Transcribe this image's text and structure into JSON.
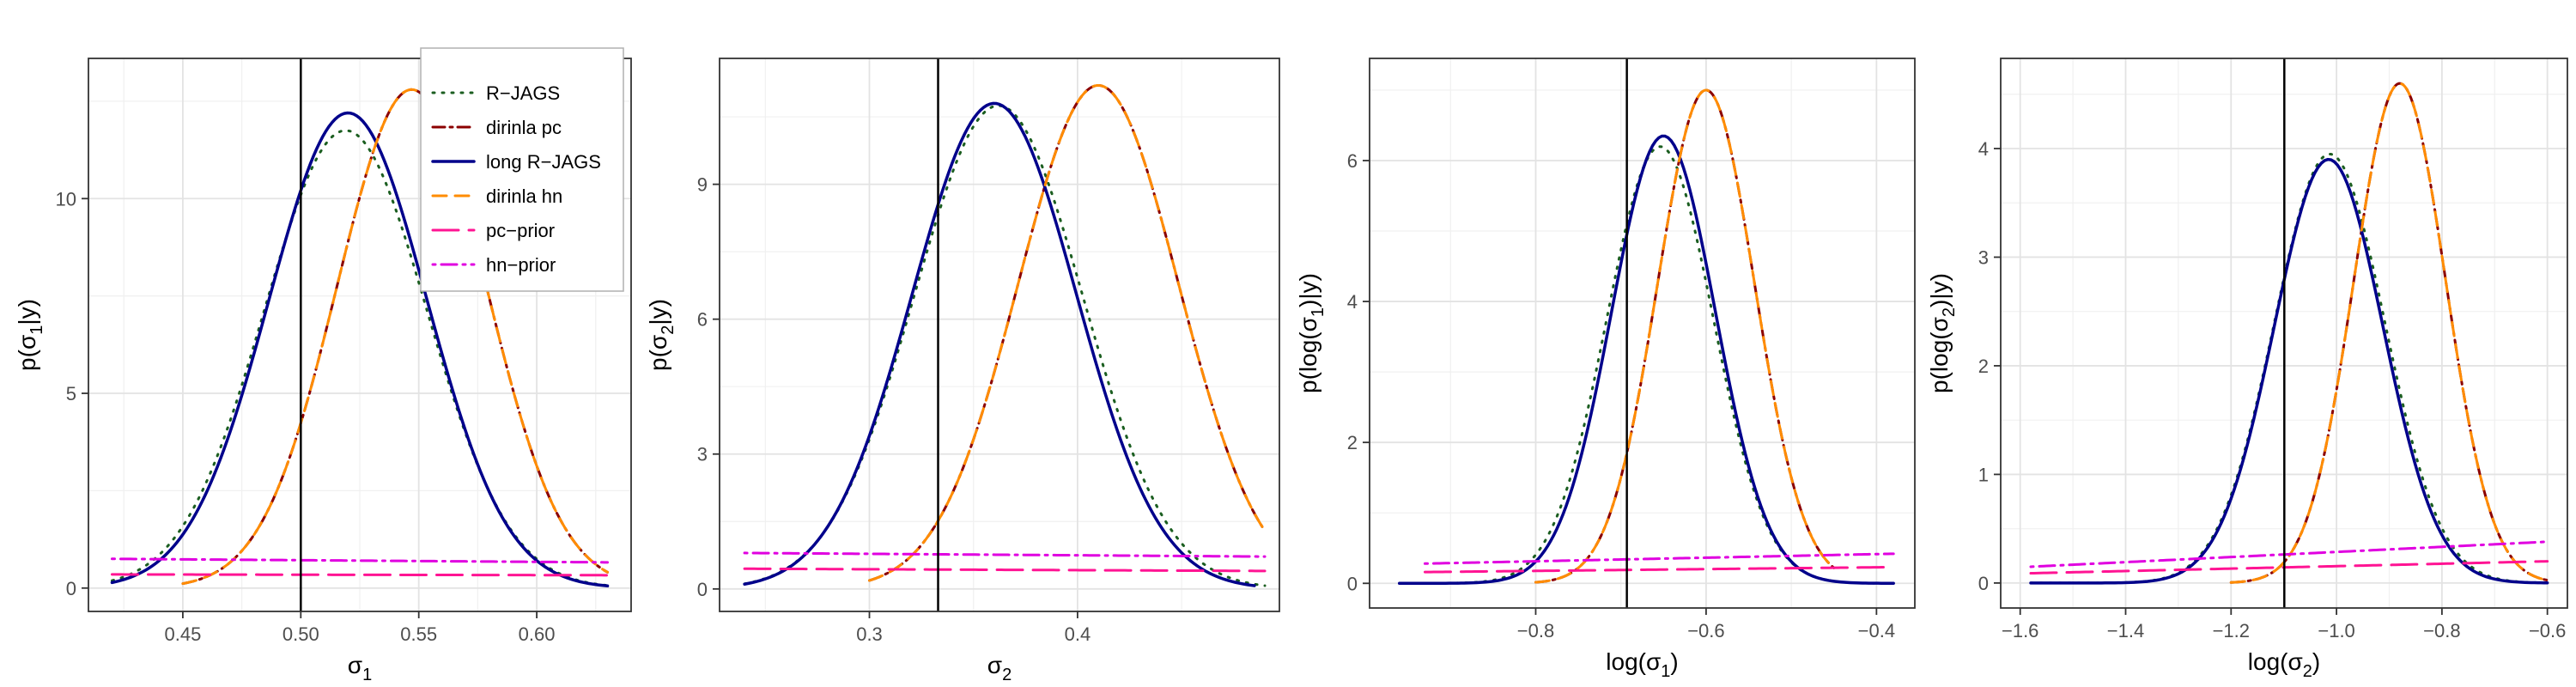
{
  "legend": {
    "placement": "top-right of first panel",
    "entries": [
      {
        "label": "R−JAGS",
        "color": "#1b5e20",
        "dash": "2 9",
        "width": 3
      },
      {
        "label": "dirinla pc",
        "color": "#8b0000",
        "dash": "14 6 3 6",
        "width": 3
      },
      {
        "label": "long R−JAGS",
        "color": "#00008b",
        "dash": "",
        "width": 3.5
      },
      {
        "label": "dirinla hn",
        "color": "#ff8c00",
        "dash": "16 10",
        "width": 3
      },
      {
        "label": "pc−prior",
        "color": "#ff1493",
        "dash": "30 12",
        "width": 3
      },
      {
        "label": "hn−prior",
        "color": "#e000e0",
        "dash": "3 7 18 7",
        "width": 3
      }
    ]
  },
  "chart_data": [
    {
      "type": "line",
      "xlabel_base": "σ",
      "xlabel_sub": "1",
      "ylabel_pre": "p(σ",
      "ylabel_sub": "1",
      "ylabel_post": "|y)",
      "xlim": [
        0.41,
        0.64
      ],
      "ylim": [
        -0.6,
        13.6
      ],
      "xticks": [
        0.45,
        0.5,
        0.55,
        0.6
      ],
      "xtick_labels": [
        "0.45",
        "0.50",
        "0.55",
        "0.60"
      ],
      "yticks": [
        0,
        5,
        10
      ],
      "ytick_labels": [
        "0",
        "5",
        "10"
      ],
      "vline": 0.5,
      "series": [
        {
          "kind": "gauss",
          "range": [
            0.42,
            0.63
          ],
          "mu": 0.519,
          "sigma": 0.0345,
          "peak": 11.75
        },
        {
          "kind": "gauss",
          "range": [
            0.45,
            0.63
          ],
          "mu": 0.547,
          "sigma": 0.0316,
          "peak": 12.8
        },
        {
          "kind": "gauss",
          "range": [
            0.42,
            0.63
          ],
          "mu": 0.52,
          "sigma": 0.0335,
          "peak": 12.2
        },
        {
          "kind": "gauss",
          "range": [
            0.45,
            0.63
          ],
          "mu": 0.547,
          "sigma": 0.0316,
          "peak": 12.8
        },
        {
          "kind": "linear",
          "range": [
            0.42,
            0.63
          ],
          "y0": 0.35,
          "y1": 0.33
        },
        {
          "kind": "linear",
          "range": [
            0.42,
            0.63
          ],
          "y0": 0.75,
          "y1": 0.66
        }
      ]
    },
    {
      "type": "line",
      "xlabel_base": "σ",
      "xlabel_sub": "2",
      "ylabel_pre": "p(σ",
      "ylabel_sub": "2",
      "ylabel_post": "|y)",
      "xlim": [
        0.228,
        0.497
      ],
      "ylim": [
        -0.5,
        11.8
      ],
      "xticks": [
        0.3,
        0.4
      ],
      "xtick_labels": [
        "0.3",
        "0.4"
      ],
      "yticks": [
        0,
        3,
        6,
        9
      ],
      "ytick_labels": [
        "0",
        "3",
        "6",
        "9"
      ],
      "vline": 0.333,
      "series": [
        {
          "kind": "gauss",
          "range": [
            0.24,
            0.49
          ],
          "mu": 0.362,
          "sigma": 0.0405,
          "peak": 10.75
        },
        {
          "kind": "gauss",
          "range": [
            0.3,
            0.49
          ],
          "mu": 0.41,
          "sigma": 0.0385,
          "peak": 11.2
        },
        {
          "kind": "gauss",
          "range": [
            0.24,
            0.485
          ],
          "mu": 0.36,
          "sigma": 0.0395,
          "peak": 10.8
        },
        {
          "kind": "gauss",
          "range": [
            0.3,
            0.49
          ],
          "mu": 0.41,
          "sigma": 0.0385,
          "peak": 11.2
        },
        {
          "kind": "linear",
          "range": [
            0.24,
            0.49
          ],
          "y0": 0.45,
          "y1": 0.4
        },
        {
          "kind": "linear",
          "range": [
            0.24,
            0.49
          ],
          "y0": 0.8,
          "y1": 0.72
        }
      ]
    },
    {
      "type": "line",
      "xlabel_base": "log(σ",
      "xlabel_sub": "1",
      "xlabel_post": ")",
      "ylabel_pre": "p(log(σ",
      "ylabel_sub": "1",
      "ylabel_post": ")|y)",
      "xlim": [
        -0.995,
        -0.355
      ],
      "ylim": [
        -0.35,
        7.45
      ],
      "xticks": [
        -0.8,
        -0.6,
        -0.4
      ],
      "xtick_labels": [
        "−0.8",
        "−0.6",
        "−0.4"
      ],
      "yticks": [
        0,
        2,
        4,
        6
      ],
      "ytick_labels": [
        "0",
        "2",
        "4",
        "6"
      ],
      "vline": -0.693,
      "series": [
        {
          "kind": "gauss",
          "range": [
            -0.96,
            -0.38
          ],
          "mu": -0.654,
          "sigma": 0.0625,
          "peak": 6.2
        },
        {
          "kind": "gauss",
          "range": [
            -0.8,
            -0.45
          ],
          "mu": -0.6,
          "sigma": 0.057,
          "peak": 7.0
        },
        {
          "kind": "gauss",
          "range": [
            -0.96,
            -0.38
          ],
          "mu": -0.65,
          "sigma": 0.061,
          "peak": 6.35
        },
        {
          "kind": "gauss",
          "range": [
            -0.8,
            -0.45
          ],
          "mu": -0.6,
          "sigma": 0.057,
          "peak": 7.0
        },
        {
          "kind": "linear",
          "range": [
            -0.93,
            -0.38
          ],
          "y0": 0.16,
          "y1": 0.23
        },
        {
          "kind": "linear",
          "range": [
            -0.93,
            -0.38
          ],
          "y0": 0.28,
          "y1": 0.42
        }
      ]
    },
    {
      "type": "line",
      "xlabel_base": "log(σ",
      "xlabel_sub": "2",
      "xlabel_post": ")",
      "ylabel_pre": "p(log(σ",
      "ylabel_sub": "2",
      "ylabel_post": ")|y)",
      "xlim": [
        -1.637,
        -0.562
      ],
      "ylim": [
        -0.23,
        4.83
      ],
      "xticks": [
        -1.6,
        -1.4,
        -1.2,
        -1.0,
        -0.8,
        -0.6
      ],
      "xtick_labels": [
        "−1.6",
        "−1.4",
        "−1.2",
        "−1.0",
        "−0.8",
        "−0.6"
      ],
      "yticks": [
        0,
        1,
        2,
        3,
        4
      ],
      "ytick_labels": [
        "0",
        "1",
        "2",
        "3",
        "4"
      ],
      "vline": -1.099,
      "series": [
        {
          "kind": "gauss",
          "range": [
            -1.58,
            -0.6
          ],
          "mu": -1.013,
          "sigma": 0.105,
          "peak": 3.95
        },
        {
          "kind": "gauss",
          "range": [
            -1.2,
            -0.6
          ],
          "mu": -0.88,
          "sigma": 0.087,
          "peak": 4.6
        },
        {
          "kind": "gauss",
          "range": [
            -1.58,
            -0.6
          ],
          "mu": -1.015,
          "sigma": 0.103,
          "peak": 3.9
        },
        {
          "kind": "gauss",
          "range": [
            -1.2,
            -0.6
          ],
          "mu": -0.88,
          "sigma": 0.087,
          "peak": 4.6
        },
        {
          "kind": "linear",
          "range": [
            -1.58,
            -0.6
          ],
          "y0": 0.09,
          "y1": 0.2
        },
        {
          "kind": "linear",
          "range": [
            -1.58,
            -0.6
          ],
          "y0": 0.15,
          "y1": 0.38
        }
      ]
    }
  ]
}
